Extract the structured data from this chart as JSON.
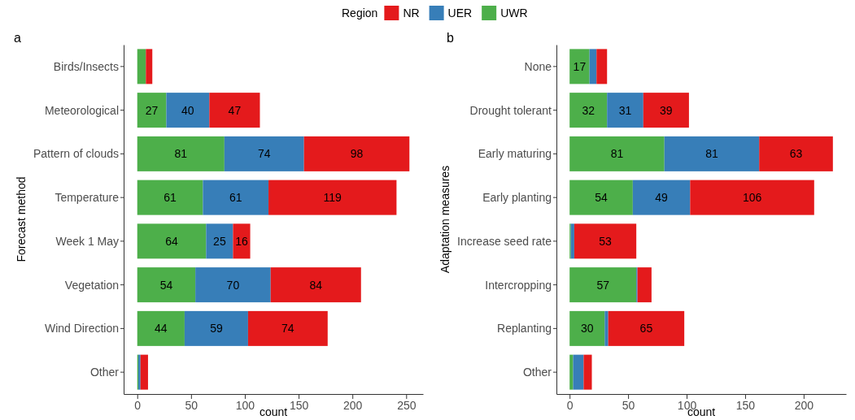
{
  "chart_data": [
    {
      "type": "bar",
      "title": "a",
      "ylabel": "Forecast method",
      "xlabel": "count",
      "legend_title": "Region",
      "legend": "top",
      "orientation": "horizontal",
      "stacked": true,
      "grid": false,
      "categories": [
        "Birds/Insects",
        "Meteorological",
        "Pattern of clouds",
        "Temperature",
        "Week 1 May",
        "Vegetation",
        "Wind Direction",
        "Other"
      ],
      "xlim": [
        -12.65,
        265.65
      ],
      "xticks": [
        0,
        50,
        100,
        150,
        200,
        250
      ],
      "series": [
        {
          "name": "UWR",
          "color": "#4daf4a",
          "values": [
            8,
            27,
            81,
            61,
            64,
            54,
            44,
            1
          ],
          "value_labels": [
            null,
            "27",
            "81",
            "61",
            "64",
            "54",
            "44",
            null
          ]
        },
        {
          "name": "UER",
          "color": "#377eb8",
          "values": [
            0,
            40,
            74,
            61,
            25,
            70,
            59,
            2
          ],
          "value_labels": [
            null,
            "40",
            "74",
            "61",
            "25",
            "70",
            "59",
            null
          ]
        },
        {
          "name": "NR",
          "color": "#e41a1c",
          "values": [
            6,
            47,
            98,
            119,
            16,
            84,
            74,
            7
          ],
          "value_labels": [
            null,
            "47",
            "98",
            "119",
            "16",
            "84",
            "74",
            null
          ]
        }
      ]
    },
    {
      "type": "bar",
      "title": "b",
      "ylabel": "Adaptation measures",
      "xlabel": "count",
      "orientation": "horizontal",
      "stacked": true,
      "grid": false,
      "categories": [
        "None",
        "Drought tolerant",
        "Early maturing",
        "Early planting",
        "Increase seed rate",
        "Intercropping",
        "Replanting",
        "Other"
      ],
      "xlim": [
        -11.25,
        236.25
      ],
      "xticks": [
        0,
        50,
        100,
        150,
        200
      ],
      "series": [
        {
          "name": "UWR",
          "color": "#4daf4a",
          "values": [
            17,
            32,
            81,
            54,
            1,
            57,
            30,
            3
          ],
          "value_labels": [
            "17",
            "32",
            "81",
            "54",
            null,
            "57",
            "30",
            null
          ]
        },
        {
          "name": "UER",
          "color": "#377eb8",
          "values": [
            6,
            31,
            81,
            49,
            3,
            1,
            3,
            9
          ],
          "value_labels": [
            null,
            "31",
            "81",
            "49",
            null,
            null,
            null,
            null
          ]
        },
        {
          "name": "NR",
          "color": "#e41a1c",
          "values": [
            9,
            39,
            63,
            106,
            53,
            12,
            65,
            7
          ],
          "value_labels": [
            null,
            "39",
            "63",
            "106",
            "53",
            null,
            "65",
            null
          ]
        }
      ]
    }
  ]
}
